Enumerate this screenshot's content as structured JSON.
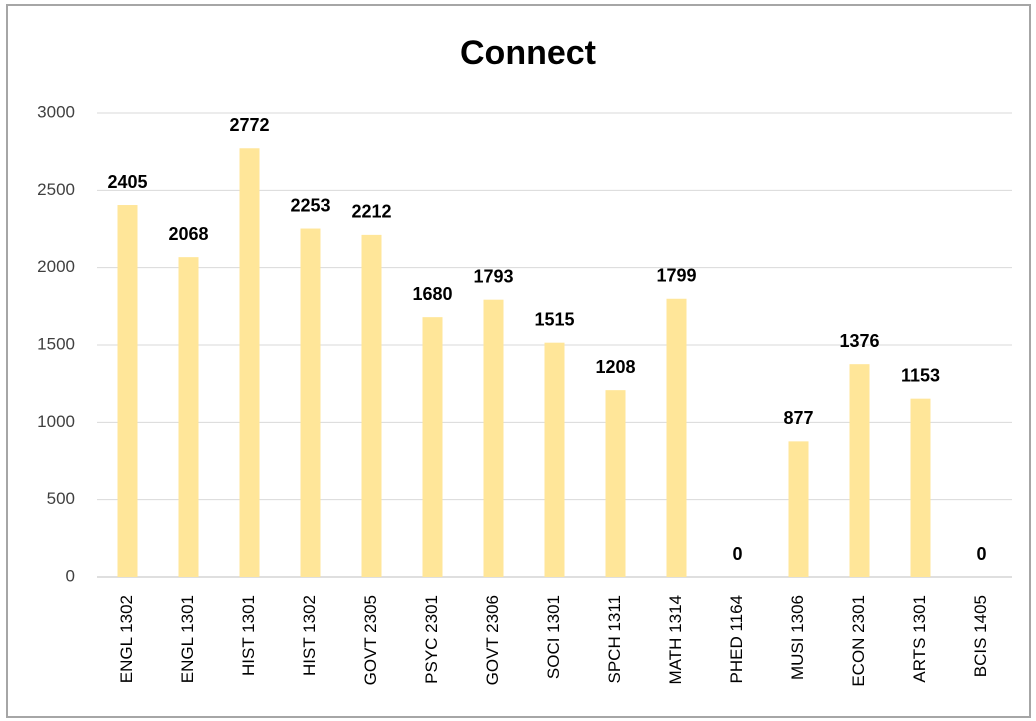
{
  "chart_data": {
    "type": "bar",
    "title": "Connect",
    "categories": [
      "ENGL 1302",
      "ENGL 1301",
      "HIST 1301",
      "HIST 1302",
      "GOVT 2305",
      "PSYC 2301",
      "GOVT 2306",
      "SOCI 1301",
      "SPCH 1311",
      "MATH 1314",
      "PHED 1164",
      "MUSI 1306",
      "ECON 2301",
      "ARTS 1301",
      "BCIS 1405"
    ],
    "values": [
      2405,
      2068,
      2772,
      2253,
      2212,
      1680,
      1793,
      1515,
      1208,
      1799,
      0,
      877,
      1376,
      1153,
      0
    ],
    "color": "#ffe699",
    "ylim": [
      0,
      3000
    ],
    "yticks": [
      0,
      500,
      1000,
      1500,
      2000,
      2500,
      3000
    ],
    "grid": true
  }
}
